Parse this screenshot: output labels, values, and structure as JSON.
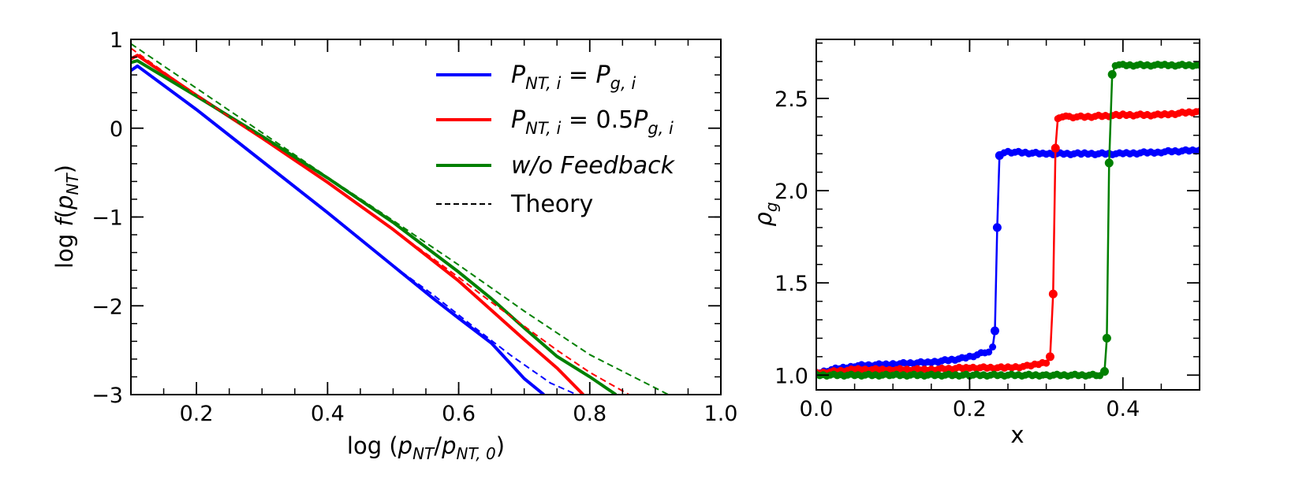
{
  "chart_data": [
    {
      "type": "line",
      "xlabel": "log (p_NT/p_NT,0)",
      "ylabel": "log f(p_NT)",
      "xlim": [
        0.1,
        1.0
      ],
      "ylim": [
        -3,
        1
      ],
      "xticks": [
        {
          "v": 0.2,
          "label": "0.2"
        },
        {
          "v": 0.4,
          "label": "0.4"
        },
        {
          "v": 0.6,
          "label": "0.6"
        },
        {
          "v": 0.8,
          "label": "0.8"
        },
        {
          "v": 1.0,
          "label": "1.0"
        }
      ],
      "yticks": [
        {
          "v": 1,
          "label": "1"
        },
        {
          "v": 0,
          "label": "0"
        },
        {
          "v": -1,
          "label": "−1"
        },
        {
          "v": -2,
          "label": "−2"
        },
        {
          "v": -3,
          "label": "−3"
        }
      ],
      "legend": {
        "position": "top-right",
        "entries": [
          {
            "label": "P_NT,i = P_g,i",
            "color": "#0000ff",
            "style": "solid"
          },
          {
            "label": "P_NT,i = 0.5P_g,i",
            "color": "#ff0000",
            "style": "solid"
          },
          {
            "label": "w/o Feedback",
            "color": "#008000",
            "style": "solid"
          },
          {
            "label": "Theory",
            "color": "#000000",
            "style": "dashed"
          }
        ]
      },
      "series": [
        {
          "name": "P_NT,i = P_g,i",
          "color": "#0000ff",
          "style": "solid",
          "x": [
            0.1,
            0.11,
            0.2,
            0.3,
            0.4,
            0.5,
            0.56,
            0.6,
            0.65,
            0.7,
            0.73
          ],
          "y": [
            0.65,
            0.7,
            0.21,
            -0.37,
            -0.95,
            -1.55,
            -1.91,
            -2.14,
            -2.42,
            -2.82,
            -3.0
          ]
        },
        {
          "name": "P_NT,i = 0.5P_g,i",
          "color": "#ff0000",
          "style": "solid",
          "x": [
            0.1,
            0.11,
            0.2,
            0.3,
            0.4,
            0.5,
            0.6,
            0.65,
            0.7,
            0.75,
            0.79
          ],
          "y": [
            0.78,
            0.82,
            0.37,
            -0.11,
            -0.61,
            -1.14,
            -1.72,
            -2.05,
            -2.38,
            -2.7,
            -3.0
          ]
        },
        {
          "name": "w/o Feedback",
          "color": "#008000",
          "style": "solid",
          "x": [
            0.1,
            0.11,
            0.2,
            0.3,
            0.4,
            0.5,
            0.6,
            0.65,
            0.7,
            0.75,
            0.8,
            0.84
          ],
          "y": [
            0.74,
            0.76,
            0.36,
            -0.09,
            -0.56,
            -1.06,
            -1.62,
            -1.92,
            -2.25,
            -2.57,
            -2.8,
            -3.0
          ]
        },
        {
          "name": "Theory (blue)",
          "color": "#0000ff",
          "style": "dashed",
          "x": [
            0.5,
            0.56,
            0.62,
            0.68,
            0.74,
            0.78
          ],
          "y": [
            -1.55,
            -1.87,
            -2.22,
            -2.56,
            -2.87,
            -3.0
          ]
        },
        {
          "name": "Theory (red)",
          "color": "#ff0000",
          "style": "dashed",
          "x": [
            0.1,
            0.2,
            0.3,
            0.4,
            0.5,
            0.6,
            0.65,
            0.7,
            0.75,
            0.8,
            0.86
          ],
          "y": [
            0.9,
            0.37,
            -0.11,
            -0.61,
            -1.14,
            -1.68,
            -1.96,
            -2.23,
            -2.5,
            -2.75,
            -3.0
          ]
        },
        {
          "name": "Theory (green)",
          "color": "#008000",
          "style": "dashed",
          "x": [
            0.1,
            0.2,
            0.3,
            0.4,
            0.5,
            0.6,
            0.7,
            0.8,
            0.92
          ],
          "y": [
            0.95,
            0.45,
            -0.05,
            -0.55,
            -1.04,
            -1.54,
            -2.06,
            -2.55,
            -3.0
          ]
        }
      ]
    },
    {
      "type": "line",
      "xlabel": "x",
      "ylabel": "ρ_g",
      "xlim": [
        0.0,
        0.5
      ],
      "ylim": [
        0.92,
        2.82
      ],
      "xticks": [
        {
          "v": 0.0,
          "label": "0.0"
        },
        {
          "v": 0.2,
          "label": "0.2"
        },
        {
          "v": 0.4,
          "label": "0.4"
        }
      ],
      "yticks": [
        {
          "v": 1.0,
          "label": "1.0"
        },
        {
          "v": 1.5,
          "label": "1.5"
        },
        {
          "v": 2.0,
          "label": "2.0"
        },
        {
          "v": 2.5,
          "label": "2.5"
        }
      ],
      "series": [
        {
          "name": "P_NT,i = P_g,i",
          "color": "#0000ff",
          "markers": true,
          "x": [
            0.0,
            0.02,
            0.05,
            0.1,
            0.15,
            0.19,
            0.21,
            0.225,
            0.23,
            0.233,
            0.236,
            0.239,
            0.24,
            0.25,
            0.3,
            0.35,
            0.4,
            0.45,
            0.5
          ],
          "y": [
            1.01,
            1.03,
            1.05,
            1.06,
            1.07,
            1.09,
            1.11,
            1.13,
            1.15,
            1.24,
            1.8,
            2.19,
            2.2,
            2.21,
            2.2,
            2.2,
            2.2,
            2.21,
            2.22
          ],
          "marked_points": [
            {
              "x": 0.233,
              "y": 1.24
            },
            {
              "x": 0.236,
              "y": 1.8
            },
            {
              "x": 0.239,
              "y": 2.19
            }
          ]
        },
        {
          "name": "P_NT,i = 0.5P_g,i",
          "color": "#ff0000",
          "markers": true,
          "x": [
            0.0,
            0.05,
            0.1,
            0.15,
            0.2,
            0.25,
            0.28,
            0.3,
            0.305,
            0.309,
            0.312,
            0.315,
            0.317,
            0.33,
            0.35,
            0.4,
            0.45,
            0.5
          ],
          "y": [
            1.01,
            1.03,
            1.03,
            1.03,
            1.04,
            1.04,
            1.05,
            1.07,
            1.1,
            1.44,
            2.23,
            2.39,
            2.4,
            2.4,
            2.4,
            2.41,
            2.41,
            2.43
          ],
          "marked_points": [
            {
              "x": 0.305,
              "y": 1.1
            },
            {
              "x": 0.309,
              "y": 1.44
            },
            {
              "x": 0.312,
              "y": 2.23
            }
          ]
        },
        {
          "name": "w/o Feedback",
          "color": "#008000",
          "markers": true,
          "x": [
            0.0,
            0.1,
            0.2,
            0.3,
            0.37,
            0.376,
            0.379,
            0.382,
            0.386,
            0.39,
            0.4,
            0.45,
            0.5
          ],
          "y": [
            1.0,
            1.0,
            1.0,
            1.0,
            1.0,
            1.02,
            1.2,
            2.15,
            2.63,
            2.68,
            2.68,
            2.68,
            2.68
          ],
          "marked_points": [
            {
              "x": 0.376,
              "y": 1.02
            },
            {
              "x": 0.379,
              "y": 1.2
            },
            {
              "x": 0.382,
              "y": 2.15
            },
            {
              "x": 0.386,
              "y": 2.63
            }
          ]
        }
      ]
    }
  ]
}
